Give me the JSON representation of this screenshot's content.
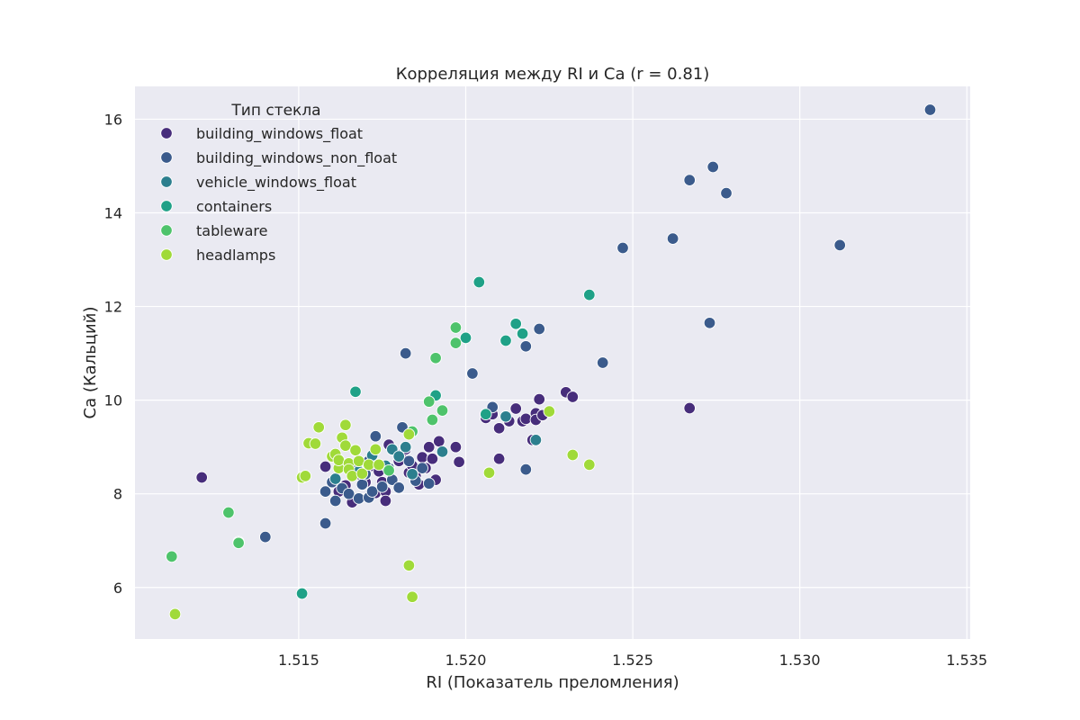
{
  "chart_data": {
    "type": "scatter",
    "title": "Корреляция между RI и Ca (r = 0.81)",
    "xlabel": "RI (Показатель преломления)",
    "ylabel": "Ca (Кальций)",
    "xlim": [
      1.5101,
      1.5351
    ],
    "ylim": [
      4.9,
      16.7
    ],
    "x_ticks": [
      {
        "value": 1.515,
        "label": "1.515"
      },
      {
        "value": 1.52,
        "label": "1.520"
      },
      {
        "value": 1.525,
        "label": "1.525"
      },
      {
        "value": 1.53,
        "label": "1.530"
      },
      {
        "value": 1.535,
        "label": "1.535"
      }
    ],
    "y_ticks": [
      {
        "value": 6,
        "label": "6"
      },
      {
        "value": 8,
        "label": "8"
      },
      {
        "value": 10,
        "label": "10"
      },
      {
        "value": 12,
        "label": "12"
      },
      {
        "value": 14,
        "label": "14"
      },
      {
        "value": 16,
        "label": "16"
      }
    ],
    "grid": true,
    "legend": {
      "title": "Тип стекла",
      "position": "top-left"
    },
    "series": [
      {
        "name": "building_windows_float",
        "color": "#472d7b",
        "points": [
          [
            1.5121,
            8.35
          ],
          [
            1.5158,
            8.58
          ],
          [
            1.5162,
            8.05
          ],
          [
            1.5164,
            8.18
          ],
          [
            1.5166,
            7.82
          ],
          [
            1.5168,
            8.42
          ],
          [
            1.517,
            8.25
          ],
          [
            1.5172,
            8.6
          ],
          [
            1.5173,
            8.02
          ],
          [
            1.5174,
            8.48
          ],
          [
            1.5175,
            8.25
          ],
          [
            1.5176,
            8.05
          ],
          [
            1.5176,
            7.85
          ],
          [
            1.5177,
            9.05
          ],
          [
            1.5178,
            8.3
          ],
          [
            1.518,
            8.7
          ],
          [
            1.5181,
            8.85
          ],
          [
            1.5182,
            8.95
          ],
          [
            1.5183,
            8.45
          ],
          [
            1.5184,
            8.6
          ],
          [
            1.5185,
            8.38
          ],
          [
            1.5186,
            8.2
          ],
          [
            1.5187,
            8.78
          ],
          [
            1.5188,
            8.55
          ],
          [
            1.5189,
            9.0
          ],
          [
            1.519,
            8.75
          ],
          [
            1.5191,
            8.3
          ],
          [
            1.5192,
            9.12
          ],
          [
            1.5197,
            9.0
          ],
          [
            1.5198,
            8.68
          ],
          [
            1.5206,
            9.62
          ],
          [
            1.5208,
            9.7
          ],
          [
            1.521,
            9.4
          ],
          [
            1.521,
            8.75
          ],
          [
            1.5213,
            9.55
          ],
          [
            1.5215,
            9.82
          ],
          [
            1.5217,
            9.55
          ],
          [
            1.5218,
            9.6
          ],
          [
            1.522,
            9.15
          ],
          [
            1.5221,
            9.72
          ],
          [
            1.5221,
            9.58
          ],
          [
            1.5222,
            10.02
          ],
          [
            1.5223,
            9.68
          ],
          [
            1.523,
            10.17
          ],
          [
            1.5232,
            10.07
          ],
          [
            1.5267,
            9.83
          ]
        ]
      },
      {
        "name": "building_windows_non_float",
        "color": "#3b5b8c",
        "points": [
          [
            1.514,
            7.08
          ],
          [
            1.5158,
            7.37
          ],
          [
            1.5158,
            8.05
          ],
          [
            1.516,
            8.25
          ],
          [
            1.5161,
            7.85
          ],
          [
            1.5163,
            8.12
          ],
          [
            1.5165,
            8.0
          ],
          [
            1.5167,
            8.6
          ],
          [
            1.5168,
            7.9
          ],
          [
            1.5169,
            8.2
          ],
          [
            1.517,
            8.42
          ],
          [
            1.5171,
            8.7
          ],
          [
            1.5171,
            7.92
          ],
          [
            1.5172,
            8.05
          ],
          [
            1.5173,
            9.23
          ],
          [
            1.5175,
            8.15
          ],
          [
            1.5177,
            8.55
          ],
          [
            1.5178,
            8.3
          ],
          [
            1.518,
            8.8
          ],
          [
            1.518,
            8.13
          ],
          [
            1.5181,
            9.42
          ],
          [
            1.5182,
            9.0
          ],
          [
            1.5183,
            8.7
          ],
          [
            1.5184,
            8.42
          ],
          [
            1.5185,
            8.28
          ],
          [
            1.5187,
            8.55
          ],
          [
            1.5189,
            8.22
          ],
          [
            1.5182,
            11.0
          ],
          [
            1.5202,
            10.57
          ],
          [
            1.5208,
            9.85
          ],
          [
            1.5218,
            11.15
          ],
          [
            1.5222,
            11.52
          ],
          [
            1.5218,
            8.52
          ],
          [
            1.5241,
            10.8
          ],
          [
            1.5247,
            13.25
          ],
          [
            1.5262,
            13.45
          ],
          [
            1.5267,
            14.7
          ],
          [
            1.5273,
            11.65
          ],
          [
            1.5274,
            14.98
          ],
          [
            1.5278,
            14.42
          ],
          [
            1.5312,
            13.31
          ],
          [
            1.5339,
            16.2
          ]
        ]
      },
      {
        "name": "vehicle_windows_float",
        "color": "#2c7f8e",
        "points": [
          [
            1.5161,
            8.32
          ],
          [
            1.5168,
            8.48
          ],
          [
            1.5172,
            8.82
          ],
          [
            1.5176,
            8.6
          ],
          [
            1.5178,
            8.95
          ],
          [
            1.518,
            8.8
          ],
          [
            1.5182,
            9.0
          ],
          [
            1.5184,
            8.42
          ],
          [
            1.5193,
            8.9
          ],
          [
            1.5212,
            9.65
          ],
          [
            1.5221,
            9.15
          ]
        ]
      },
      {
        "name": "containers",
        "color": "#1fa187",
        "points": [
          [
            1.5132,
            6.97
          ],
          [
            1.5151,
            5.87
          ],
          [
            1.5167,
            10.18
          ],
          [
            1.5191,
            10.1
          ],
          [
            1.52,
            11.33
          ],
          [
            1.5204,
            12.52
          ],
          [
            1.5206,
            9.7
          ],
          [
            1.5212,
            11.27
          ],
          [
            1.5215,
            11.63
          ],
          [
            1.5217,
            11.42
          ],
          [
            1.5237,
            12.25
          ]
        ]
      },
      {
        "name": "tableware",
        "color": "#4ec36b",
        "points": [
          [
            1.5112,
            6.66
          ],
          [
            1.5129,
            7.6
          ],
          [
            1.5132,
            6.95
          ],
          [
            1.5177,
            8.5
          ],
          [
            1.5184,
            9.33
          ],
          [
            1.5189,
            9.97
          ],
          [
            1.519,
            9.58
          ],
          [
            1.5191,
            10.9
          ],
          [
            1.5193,
            9.78
          ],
          [
            1.5197,
            11.55
          ],
          [
            1.5197,
            11.22
          ]
        ]
      },
      {
        "name": "headlamps",
        "color": "#a0da39",
        "points": [
          [
            1.5113,
            5.43
          ],
          [
            1.5151,
            8.35
          ],
          [
            1.5152,
            8.38
          ],
          [
            1.5153,
            9.08
          ],
          [
            1.5155,
            9.07
          ],
          [
            1.5156,
            9.42
          ],
          [
            1.516,
            8.8
          ],
          [
            1.5161,
            8.85
          ],
          [
            1.5162,
            8.55
          ],
          [
            1.5162,
            8.72
          ],
          [
            1.5163,
            9.2
          ],
          [
            1.5164,
            9.03
          ],
          [
            1.5164,
            9.47
          ],
          [
            1.5165,
            8.65
          ],
          [
            1.5165,
            8.52
          ],
          [
            1.5166,
            8.38
          ],
          [
            1.5167,
            8.93
          ],
          [
            1.5168,
            8.7
          ],
          [
            1.5169,
            8.43
          ],
          [
            1.5171,
            8.62
          ],
          [
            1.5173,
            8.95
          ],
          [
            1.5174,
            8.62
          ],
          [
            1.5183,
            9.27
          ],
          [
            1.5183,
            6.47
          ],
          [
            1.5184,
            5.8
          ],
          [
            1.5207,
            8.45
          ],
          [
            1.5225,
            9.76
          ],
          [
            1.5232,
            8.83
          ],
          [
            1.5237,
            8.62
          ]
        ]
      }
    ]
  }
}
